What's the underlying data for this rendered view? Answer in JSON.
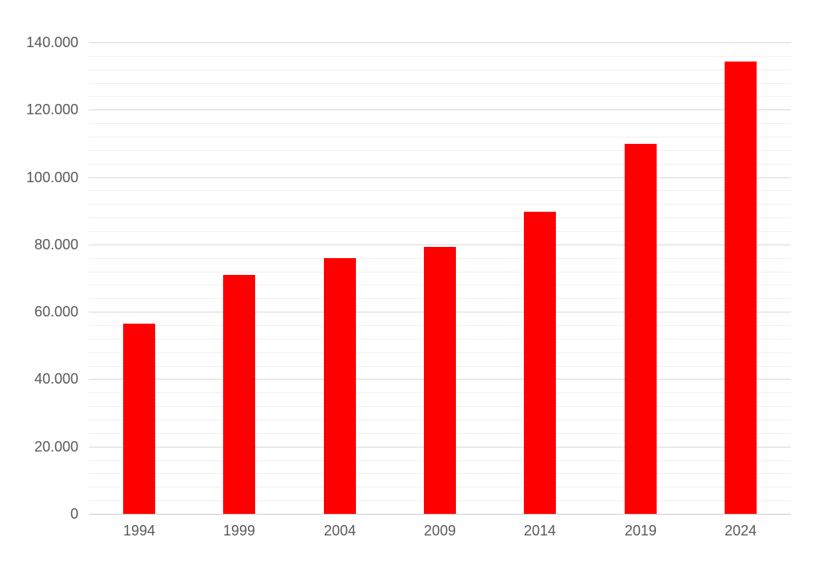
{
  "chart_data": {
    "type": "bar",
    "title": "",
    "xlabel": "",
    "ylabel": "",
    "categories": [
      "1994",
      "1999",
      "2004",
      "2009",
      "2014",
      "2019",
      "2024"
    ],
    "values": [
      56500,
      71000,
      76000,
      79300,
      89600,
      109800,
      134300
    ],
    "ylim": [
      0,
      140000
    ],
    "y_major_unit": 20000,
    "y_minor_unit": 4000,
    "y_tick_labels": [
      "0",
      "20.000",
      "40.000",
      "60.000",
      "80.000",
      "100.000",
      "120.000",
      "140.000"
    ],
    "legend_position": "none",
    "grid": "horizontal major and minor gridlines",
    "bar_gap_ratio": 0.32,
    "colors": {
      "bar": "#fe0000",
      "label": "#595959",
      "major_grid": "#d9d9d9",
      "minor_grid": "#f0f0f0",
      "axis_line": "#cccccc",
      "background": "#ffffff"
    }
  }
}
